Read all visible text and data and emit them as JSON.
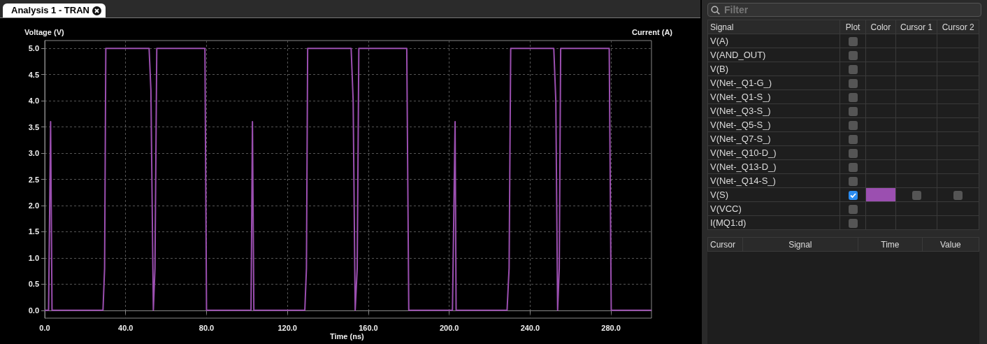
{
  "chart_data": {
    "type": "line",
    "title": "Analysis 1 - TRAN",
    "xlabel": "Time (ns)",
    "ylabel": "Voltage (V)",
    "y2label": "Current (A)",
    "xlim": [
      0,
      300
    ],
    "xticks": [
      {
        "value": 0,
        "label": "0.0"
      },
      {
        "value": 40,
        "label": "40.0"
      },
      {
        "value": 80,
        "label": "80.0"
      },
      {
        "value": 120,
        "label": "120.0"
      },
      {
        "value": 160,
        "label": "160.0"
      },
      {
        "value": 200,
        "label": "200.0"
      },
      {
        "value": 240,
        "label": "240.0"
      },
      {
        "value": 280,
        "label": "280.0"
      }
    ],
    "ylim": [
      -0.15,
      5.15
    ],
    "yticks": [
      {
        "value": 0,
        "label": "0.0"
      },
      {
        "value": 0.5,
        "label": "0.5"
      },
      {
        "value": 1,
        "label": "1.0"
      },
      {
        "value": 1.5,
        "label": "1.5"
      },
      {
        "value": 2,
        "label": "2.0"
      },
      {
        "value": 2.5,
        "label": "2.5"
      },
      {
        "value": 3,
        "label": "3.0"
      },
      {
        "value": 3.5,
        "label": "3.5"
      },
      {
        "value": 4,
        "label": "4.0"
      },
      {
        "value": 4.5,
        "label": "4.5"
      },
      {
        "value": 5,
        "label": "5.0"
      }
    ],
    "grid": true,
    "marker": "none",
    "line_style": "solid",
    "series": [
      {
        "name": "V(S)",
        "color": "#9b4fb0",
        "x": [
          0,
          1.9,
          2.9,
          3.6,
          28.8,
          29.6,
          30.2,
          51.6,
          52.5,
          53.7,
          54.5,
          55.4,
          79.2,
          80,
          102,
          102.7,
          103.4,
          128.6,
          129.4,
          130,
          151.5,
          152.5,
          153.5,
          154.5,
          155.3,
          179,
          180,
          201.6,
          202.9,
          203.4,
          228.6,
          229.6,
          230.4,
          251.7,
          252.7,
          253.6,
          254.4,
          255.1,
          279.1,
          280.1,
          300
        ],
        "values": [
          0,
          0,
          3.6,
          0,
          0,
          0.8,
          5,
          5,
          4.2,
          0,
          0.8,
          5,
          5,
          0,
          0,
          3.6,
          0,
          0,
          0.8,
          5,
          5,
          4,
          0,
          0.8,
          5,
          5,
          0,
          0,
          3.6,
          0,
          0,
          0.8,
          5,
          5,
          4,
          0,
          0.8,
          5,
          5,
          0,
          0
        ]
      }
    ],
    "annotations": [
      "Filter",
      "Signal",
      "Plot",
      "Color",
      "Cursor 1",
      "Cursor 2",
      "V(A)",
      "V(AND_OUT)",
      "V(B)",
      "V(Net-_Q1-G_)",
      "V(Net-_Q1-S_)",
      "V(Net-_Q3-S_)",
      "V(Net-_Q5-S_)",
      "V(Net-_Q7-S_)",
      "V(Net-_Q10-D_)",
      "V(Net-_Q13-D_)",
      "V(Net-_Q14-S_)",
      "V(VCC)",
      "I(MQ1:d)",
      "Cursor",
      "Signal",
      "Time",
      "Value"
    ]
  }
}
